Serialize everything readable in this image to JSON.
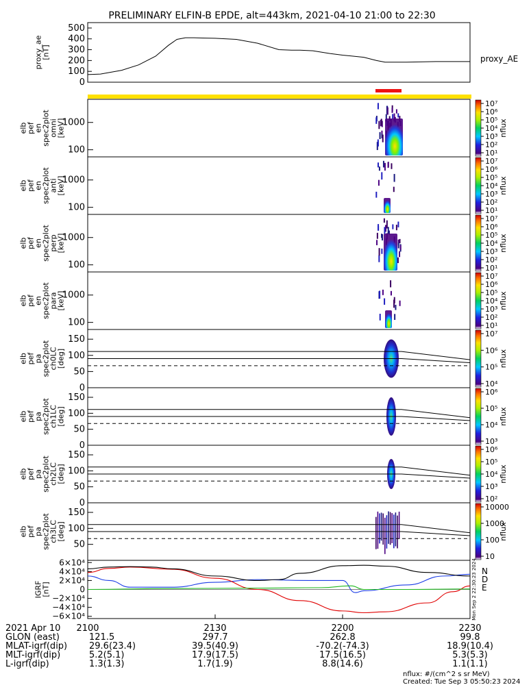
{
  "title": "PRELIMINARY ELFIN-B EPDE, alt=443km, 2021-04-10 21:00 to 22:30",
  "colors": {
    "yellow_bar": "#ffe100",
    "red_bar": "#ee1111",
    "N_trace": "#1a3ce6",
    "D_trace": "#e00000",
    "E_trace": "#1db81d",
    "total_trace": "#000000"
  },
  "chart_data": [
    {
      "id": "proxy_ae",
      "type": "line",
      "ylabel": [
        "proxy_ae",
        "[nT]"
      ],
      "legend": "proxy_AE",
      "ylim": [
        0,
        550
      ],
      "yticks": [
        0,
        100,
        200,
        300,
        400,
        500
      ],
      "xlim": [
        0,
        90
      ],
      "x": [
        0,
        3,
        8,
        12,
        16,
        19,
        21,
        23,
        25,
        27,
        30,
        35,
        40,
        45,
        48,
        50,
        53,
        57,
        60,
        65,
        68,
        70,
        75,
        82,
        90
      ],
      "values": [
        70,
        75,
        110,
        160,
        240,
        340,
        395,
        410,
        410,
        408,
        405,
        395,
        360,
        300,
        295,
        295,
        290,
        265,
        250,
        230,
        200,
        185,
        185,
        190,
        190
      ]
    },
    {
      "id": "en_omni",
      "type": "heatmap",
      "ylabel": [
        "elb",
        "pef",
        "en",
        "spec2plot",
        "omni",
        "[keV]"
      ],
      "yscale": "log",
      "ylim": [
        55,
        7000
      ],
      "yticks": [
        100,
        1000
      ],
      "zlabel": "nflux",
      "zticks": [
        "10⁷",
        "10⁶",
        "10⁵",
        "10⁴",
        "10³",
        "10²",
        "10¹"
      ]
    },
    {
      "id": "en_anti",
      "type": "heatmap",
      "ylabel": [
        "elb",
        "pef",
        "en",
        "spec2plot",
        "anti",
        "[keV]"
      ],
      "yscale": "log",
      "ylim": [
        55,
        7000
      ],
      "yticks": [
        100,
        1000
      ],
      "zlabel": "nflux",
      "zticks": [
        "10⁷",
        "10⁶",
        "10⁵",
        "10⁴",
        "10³",
        "10²",
        "10¹"
      ]
    },
    {
      "id": "en_perp",
      "type": "heatmap",
      "ylabel": [
        "elb",
        "pef",
        "en",
        "spec2plot",
        "perp",
        "[keV]"
      ],
      "yscale": "log",
      "ylim": [
        55,
        7000
      ],
      "yticks": [
        100,
        1000
      ],
      "zlabel": "nflux",
      "zticks": [
        "10⁷",
        "10⁶",
        "10⁵",
        "10⁴",
        "10³",
        "10²",
        "10¹"
      ]
    },
    {
      "id": "en_para",
      "type": "heatmap",
      "ylabel": [
        "elb",
        "pef",
        "en",
        "spec2plot",
        "para",
        "[keV]"
      ],
      "yscale": "log",
      "ylim": [
        55,
        7000
      ],
      "yticks": [
        100,
        1000
      ],
      "zlabel": "nflux",
      "zticks": [
        "10⁷",
        "10⁶",
        "10⁵",
        "10⁴",
        "10³",
        "10²",
        "10¹"
      ]
    },
    {
      "id": "pa_ch0",
      "type": "heatmap",
      "ylabel": [
        "elb",
        "pef",
        "pa",
        "spec2plot",
        "ch0LC",
        "[deg]"
      ],
      "ylim": [
        0,
        180
      ],
      "yticks": [
        0,
        50,
        100,
        150
      ],
      "lines_solid": [
        112,
        90
      ],
      "lines_dashed": [
        68
      ],
      "zlabel": "nflux",
      "zticks": [
        "10⁷",
        "10⁶",
        "10⁵",
        "10⁴"
      ]
    },
    {
      "id": "pa_ch1",
      "type": "heatmap",
      "ylabel": [
        "elb",
        "pef",
        "pa",
        "spec2plot",
        "ch1LC",
        "[deg]"
      ],
      "ylim": [
        0,
        180
      ],
      "yticks": [
        0,
        50,
        100,
        150
      ],
      "lines_solid": [
        112,
        90
      ],
      "lines_dashed": [
        68
      ],
      "zlabel": "nflux",
      "zticks": [
        "10⁶",
        "10⁵",
        "10⁴",
        "10³"
      ]
    },
    {
      "id": "pa_ch2",
      "type": "heatmap",
      "ylabel": [
        "elb",
        "pef",
        "pa",
        "spec2plot",
        "ch2LC",
        "[deg]"
      ],
      "ylim": [
        0,
        180
      ],
      "yticks": [
        0,
        50,
        100,
        150
      ],
      "lines_solid": [
        112,
        90
      ],
      "lines_dashed": [
        68
      ],
      "zlabel": "nflux",
      "zticks": [
        "10⁶",
        "10⁵",
        "10⁴",
        "10³",
        "10²"
      ]
    },
    {
      "id": "pa_ch3",
      "type": "heatmap",
      "ylabel": [
        "elb",
        "pef",
        "pa",
        "spec2plot",
        "ch3LC",
        "[deg]"
      ],
      "ylim": [
        0,
        180
      ],
      "yticks": [
        50,
        100,
        150
      ],
      "lines_solid": [
        112,
        90
      ],
      "lines_dashed": [
        68
      ],
      "zlabel": "nflux",
      "zticks": [
        "10000",
        "1000",
        "100",
        "10"
      ]
    },
    {
      "id": "igrf",
      "type": "line",
      "ylabel": [
        "IGRF",
        "[nT]"
      ],
      "ylim": [
        -65000,
        65000
      ],
      "yticks": [
        -60000,
        -40000,
        -20000,
        0,
        20000,
        40000,
        60000
      ],
      "legend": [
        "N",
        "D",
        "E"
      ],
      "series": [
        {
          "name": "N",
          "x": [
            0,
            5,
            10,
            20,
            30,
            40,
            52,
            60,
            63,
            65,
            75,
            84,
            90
          ],
          "values": [
            30000,
            20000,
            5000,
            5000,
            16000,
            22000,
            20000,
            20000,
            -7000,
            -3000,
            10000,
            30000,
            34000
          ]
        },
        {
          "name": "D",
          "x": [
            0,
            5,
            10,
            20,
            30,
            40,
            50,
            60,
            65,
            70,
            80,
            86,
            90
          ],
          "values": [
            38000,
            47000,
            50000,
            45000,
            25000,
            0,
            -25000,
            -48000,
            -52000,
            -50000,
            -30000,
            -5000,
            8000
          ]
        },
        {
          "name": "E",
          "x": [
            0,
            20,
            40,
            55,
            62,
            65,
            75,
            90
          ],
          "values": [
            0,
            2000,
            3000,
            4000,
            8000,
            0,
            0,
            1000
          ]
        },
        {
          "name": "total",
          "x": [
            0,
            5,
            10,
            15,
            20,
            30,
            40,
            45,
            50,
            60,
            65,
            70,
            80,
            90
          ],
          "values": [
            46000,
            50000,
            51000,
            50000,
            46000,
            30000,
            20000,
            22000,
            36000,
            53000,
            54000,
            52000,
            38000,
            30000
          ]
        }
      ]
    }
  ],
  "xaxis": {
    "labels": [
      "2100",
      "2130",
      "2200",
      "2230"
    ],
    "rows": [
      {
        "name": "2021 Apr 10",
        "values": [
          "",
          "",
          "",
          ""
        ]
      },
      {
        "name": "GLON (east)",
        "values": [
          "121.5",
          "297.7",
          "262.8",
          "99.8"
        ]
      },
      {
        "name": "MLAT-igrf(dip)",
        "values": [
          "29.6(23.4)",
          "39.5(40.9)",
          "-70.2(-74.3)",
          "18.9(10.4)"
        ]
      },
      {
        "name": "MLT-igrf(dip)",
        "values": [
          "5.2(5.1)",
          "17.9(17.5)",
          "17.5(16.5)",
          "5.3(5.3)"
        ]
      },
      {
        "name": "L-igrf(dip)",
        "values": [
          "1.3(1.3)",
          "1.7(1.9)",
          "8.8(14.6)",
          "1.1(1.1)"
        ]
      }
    ]
  },
  "footer": {
    "units": "nflux: #/(cm^2 s sr MeV)",
    "created": "Created: Tue Sep  3 05:50:23 2024"
  },
  "side_stamp": "Mon Sep  2 22:30:23 2024"
}
